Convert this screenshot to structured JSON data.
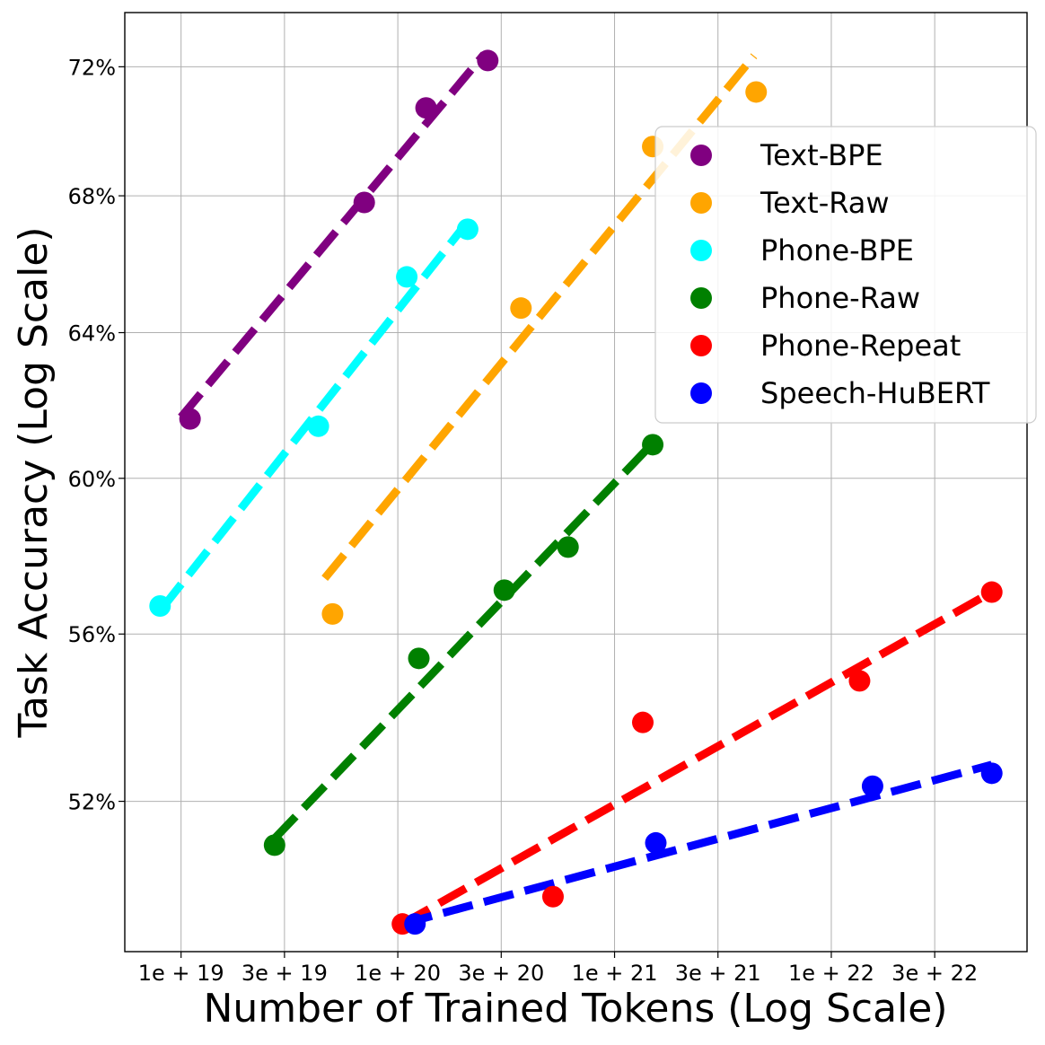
{
  "chart_data": {
    "type": "scatter",
    "xlabel": "Number of Trained Tokens (Log Scale)",
    "ylabel": "Task Accuracy (Log Scale)",
    "x_scale": "log",
    "y_scale": "log",
    "xlim": [
      5.5e+18,
      8e+22
    ],
    "ylim": [
      0.4865,
      0.7375
    ],
    "grid": true,
    "legend_position": "upper-right",
    "x_ticks": [
      {
        "value": 1e+19,
        "label": "1e + 19"
      },
      {
        "value": 3e+19,
        "label": "3e + 19"
      },
      {
        "value": 1e+20,
        "label": "1e + 20"
      },
      {
        "value": 3e+20,
        "label": "3e + 20"
      },
      {
        "value": 1e+21,
        "label": "1e + 21"
      },
      {
        "value": 3e+21,
        "label": "3e + 21"
      },
      {
        "value": 1e+22,
        "label": "1e + 22"
      },
      {
        "value": 3e+22,
        "label": "3e + 22"
      }
    ],
    "y_ticks": [
      {
        "value": 0.52,
        "label": "52%"
      },
      {
        "value": 0.56,
        "label": "56%"
      },
      {
        "value": 0.6,
        "label": "60%"
      },
      {
        "value": 0.64,
        "label": "64%"
      },
      {
        "value": 0.68,
        "label": "68%"
      },
      {
        "value": 0.72,
        "label": "72%"
      }
    ],
    "series": [
      {
        "name": "Text-BPE",
        "color": "#800080",
        "points": [
          [
            1.1e+19,
            0.616
          ],
          [
            7e+19,
            0.678
          ],
          [
            1.35e+20,
            0.707
          ],
          [
            2.6e+20,
            0.722
          ]
        ],
        "fit": [
          [
            1e+19,
            0.6165
          ],
          [
            2.5e+20,
            0.724
          ]
        ]
      },
      {
        "name": "Text-Raw",
        "color": "#ffa500",
        "points": [
          [
            5e+19,
            0.565
          ],
          [
            3.7e+20,
            0.647
          ],
          [
            1.5e+21,
            0.695
          ],
          [
            4.5e+21,
            0.712
          ]
        ],
        "fit": [
          [
            4.6e+19,
            0.574
          ],
          [
            4.4e+21,
            0.7235
          ]
        ]
      },
      {
        "name": "Phone-BPE",
        "color": "#00ffff",
        "points": [
          [
            8e+18,
            0.567
          ],
          [
            4.3e+19,
            0.614
          ],
          [
            1.1e+20,
            0.656
          ],
          [
            2.1e+20,
            0.67
          ]
        ],
        "fit": [
          [
            8.2e+18,
            0.5665
          ],
          [
            2e+20,
            0.6705
          ]
        ]
      },
      {
        "name": "Phone-Raw",
        "color": "#008000",
        "points": [
          [
            2.7e+19,
            0.51
          ],
          [
            1.25e+20,
            0.554
          ],
          [
            3.1e+20,
            0.571
          ],
          [
            6.1e+20,
            0.582
          ],
          [
            1.5e+21,
            0.609
          ]
        ],
        "fit": [
          [
            2.7e+19,
            0.5115
          ],
          [
            1.45e+21,
            0.6085
          ]
        ]
      },
      {
        "name": "Phone-Repeat",
        "color": "#ff0000",
        "points": [
          [
            1.05e+20,
            0.4925
          ],
          [
            5.2e+20,
            0.4985
          ],
          [
            1.35e+21,
            0.5385
          ],
          [
            1.35e+22,
            0.5485
          ],
          [
            5.5e+22,
            0.5705
          ]
        ],
        "fit": [
          [
            1.05e+20,
            0.4925
          ],
          [
            5.5e+22,
            0.5705
          ]
        ]
      },
      {
        "name": "Speech-HuBERT",
        "color": "#0000ff",
        "points": [
          [
            1.2e+20,
            0.4925
          ],
          [
            1.55e+21,
            0.5105
          ],
          [
            1.55e+22,
            0.5235
          ],
          [
            5.5e+22,
            0.5265
          ]
        ],
        "fit": [
          [
            1.05e+20,
            0.4925
          ],
          [
            5.5e+22,
            0.5285
          ]
        ]
      }
    ]
  }
}
